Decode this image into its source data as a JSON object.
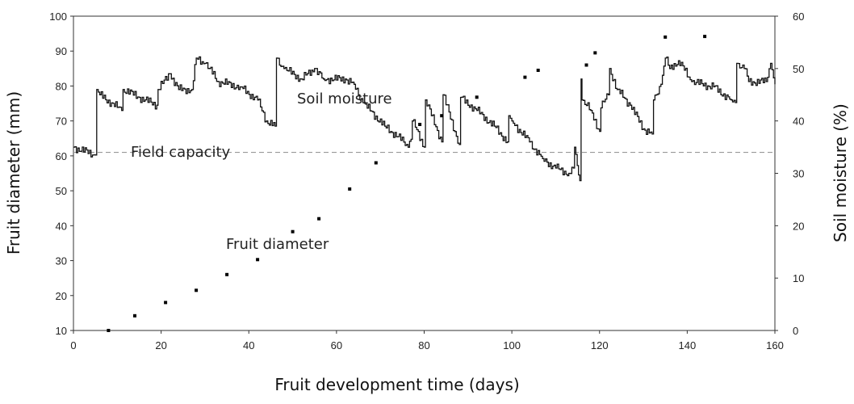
{
  "chart_data": {
    "type": "scatter+line",
    "title": "",
    "xlabel": "Fruit development time (days)",
    "ylabel_left": "Fruit diameter (mm)",
    "ylabel_right": "Soil moisture (%)",
    "xlim": [
      0,
      160
    ],
    "ylim_left": [
      10,
      100
    ],
    "ylim_right": [
      0,
      60
    ],
    "x_ticks": [
      "0",
      "20",
      "40",
      "60",
      "80",
      "100",
      "120",
      "140",
      "160"
    ],
    "y_left_ticks": [
      "10",
      "20",
      "30",
      "40",
      "50",
      "60",
      "70",
      "80",
      "90",
      "100"
    ],
    "y_right_ticks": [
      "0",
      "10",
      "20",
      "30",
      "40",
      "50",
      "60"
    ],
    "grid": false,
    "annotations": {
      "soil_moisture": "Soil moisture",
      "field_capacity": "Field capacity",
      "fruit_diameter": "Fruit diameter"
    },
    "field_capacity_percent": 34,
    "series": [
      {
        "name": "Fruit diameter",
        "axis": "left",
        "style": "markers",
        "points": [
          [
            8,
            10
          ],
          [
            14,
            14.2
          ],
          [
            21,
            18
          ],
          [
            28,
            21.5
          ],
          [
            35,
            26
          ],
          [
            42,
            30.3
          ],
          [
            50,
            38.3
          ],
          [
            56,
            42
          ],
          [
            63,
            50.5
          ],
          [
            69,
            58
          ],
          [
            79,
            69
          ],
          [
            84,
            71.5
          ],
          [
            92,
            76.8
          ],
          [
            103,
            82.5
          ],
          [
            106,
            84.5
          ],
          [
            117,
            86
          ],
          [
            119,
            89.5
          ],
          [
            135,
            94
          ],
          [
            144,
            94.2
          ]
        ]
      },
      {
        "name": "Soil moisture",
        "axis": "right",
        "style": "line",
        "keypoints": [
          [
            0,
            35
          ],
          [
            5,
            33.5
          ],
          [
            5.3,
            46
          ],
          [
            6,
            45
          ],
          [
            11,
            42
          ],
          [
            11.3,
            46
          ],
          [
            15,
            44.5
          ],
          [
            19,
            43
          ],
          [
            19.3,
            46
          ],
          [
            22,
            49
          ],
          [
            24,
            46
          ],
          [
            27,
            46
          ],
          [
            28,
            52
          ],
          [
            30,
            51
          ],
          [
            31,
            50
          ],
          [
            33,
            47.5
          ],
          [
            38,
            46.5
          ],
          [
            42,
            44
          ],
          [
            44,
            40
          ],
          [
            46,
            39
          ],
          [
            46.3,
            52
          ],
          [
            48,
            50
          ],
          [
            52,
            48
          ],
          [
            55,
            50
          ],
          [
            57,
            48
          ],
          [
            62,
            48
          ],
          [
            64,
            47
          ],
          [
            66,
            43.5
          ],
          [
            71,
            39
          ],
          [
            74,
            37
          ],
          [
            76,
            35.5
          ],
          [
            77,
            36.5
          ],
          [
            77.3,
            40
          ],
          [
            80,
            35
          ],
          [
            80.3,
            44
          ],
          [
            84,
            36
          ],
          [
            84.3,
            45
          ],
          [
            88,
            35.5
          ],
          [
            88.3,
            44.5
          ],
          [
            92,
            42
          ],
          [
            96,
            39
          ],
          [
            99,
            36
          ],
          [
            99.3,
            41
          ],
          [
            100,
            40
          ],
          [
            104,
            36
          ],
          [
            107,
            32.8
          ],
          [
            110,
            31
          ],
          [
            113,
            30
          ],
          [
            114,
            31
          ],
          [
            114.3,
            35
          ],
          [
            115.5,
            28.6
          ],
          [
            115.8,
            48
          ],
          [
            116,
            44
          ],
          [
            118,
            42
          ],
          [
            120,
            38
          ],
          [
            120.3,
            42.5
          ],
          [
            122,
            45
          ],
          [
            122.3,
            50
          ],
          [
            124,
            46
          ],
          [
            127,
            43
          ],
          [
            130,
            38.5
          ],
          [
            132,
            37.5
          ],
          [
            132.3,
            44
          ],
          [
            134,
            47
          ],
          [
            135,
            52
          ],
          [
            136,
            50
          ],
          [
            138,
            51.5
          ],
          [
            141,
            47.5
          ],
          [
            146,
            46.5
          ],
          [
            150,
            44
          ],
          [
            151,
            43.5
          ],
          [
            151.3,
            51
          ],
          [
            153,
            50
          ],
          [
            154,
            47.5
          ],
          [
            158,
            47.5
          ],
          [
            159,
            51
          ],
          [
            160,
            47
          ]
        ]
      }
    ]
  }
}
